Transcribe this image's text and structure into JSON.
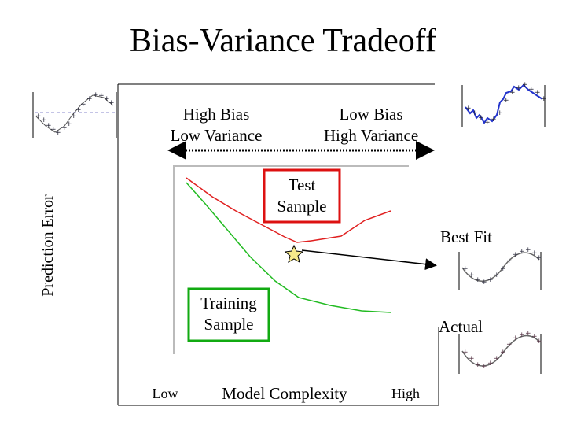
{
  "title": "Bias-Variance Tradeoff",
  "regions": {
    "left": [
      "High Bias",
      "Low Variance"
    ],
    "right": [
      "Low Bias",
      "High Variance"
    ]
  },
  "y_axis_label": "Prediction Error",
  "x_axis": {
    "label": "Model Complexity",
    "low": "Low",
    "high": "High"
  },
  "test_label": [
    "Test",
    "Sample"
  ],
  "training_label": [
    "Training",
    "Sample"
  ],
  "best_fit_label": "Best Fit",
  "actual_label": "Actual",
  "colors": {
    "test_curve": "#e02020",
    "training_curve": "#22bb22",
    "test_box": "#dd1111",
    "training_box": "#11aa11",
    "star_fill": "#f6e98a"
  }
}
